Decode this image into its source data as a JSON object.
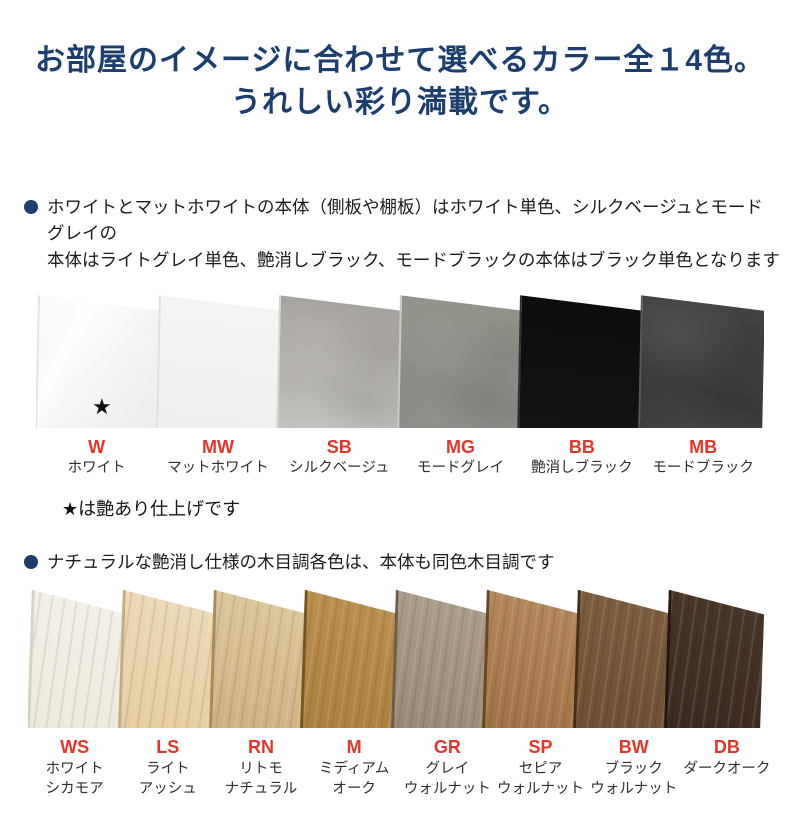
{
  "title": {
    "lines": [
      "お部屋のイメージに合わせて選べるカラー全１4色。",
      "うれしい彩り満載です。"
    ],
    "color": "#1b3e6f"
  },
  "accent": {
    "code_color": "#e53528",
    "bullet_color": "#1b3e6f"
  },
  "groups": [
    {
      "note_lines": [
        "ホワイトとマットホワイトの本体（側板や棚板）はホワイト単色、シルクベージュとモードグレイの",
        "本体はライトグレイ単色、艶消しブラック、モードブラックの本体はブラック単色となります"
      ],
      "footnote": "★は艶あり仕上げです",
      "swatches": [
        {
          "code": "W",
          "name_lines": [
            "ホワイト"
          ],
          "color_top": "#fbfcfc",
          "color_bottom": "#f4f5f5",
          "edge": "#e3e3e3",
          "texture": "gloss",
          "star": "★"
        },
        {
          "code": "MW",
          "name_lines": [
            "マットホワイト"
          ],
          "color_top": "#f4f4f3",
          "color_bottom": "#ededec",
          "edge": "#e0e0de",
          "texture": "flat"
        },
        {
          "code": "SB",
          "name_lines": [
            "シルクベージュ"
          ],
          "color_top": "#a5a29e",
          "color_bottom": "#cbc9c5",
          "edge": "#d8d6d2",
          "texture": "stone"
        },
        {
          "code": "MG",
          "name_lines": [
            "モードグレイ"
          ],
          "color_top": "#909189",
          "color_bottom": "#878882",
          "edge": "#c9c9c5",
          "texture": "stone"
        },
        {
          "code": "BB",
          "name_lines": [
            "艶消しブラック"
          ],
          "color_top": "#0d0d0d",
          "color_bottom": "#161616",
          "edge": "#303030",
          "texture": "flat"
        },
        {
          "code": "MB",
          "name_lines": [
            "モードブラック"
          ],
          "color_top": "#424342",
          "color_bottom": "#353635",
          "edge": "#5a5a58",
          "texture": "stone"
        }
      ]
    },
    {
      "note_lines": [
        "ナチュラルな艶消し仕様の木目調各色は、本体も同色木目調です"
      ],
      "swatches": [
        {
          "code": "WS",
          "name_lines": [
            "ホワイト",
            "シカモア"
          ],
          "color_top": "#f2efe7",
          "color_bottom": "#eae5d8",
          "edge": "#d9d2c0",
          "texture": "wood"
        },
        {
          "code": "LS",
          "name_lines": [
            "ライト",
            "アッシュ"
          ],
          "color_top": "#eed9b6",
          "color_bottom": "#e2c697",
          "edge": "#c8ac7e",
          "texture": "wood"
        },
        {
          "code": "RN",
          "name_lines": [
            "リトモ",
            "ナチュラル"
          ],
          "color_top": "#dcc49c",
          "color_bottom": "#c8a977",
          "edge": "#a78b5c",
          "texture": "wood"
        },
        {
          "code": "M",
          "name_lines": [
            "ミディアム",
            "オーク"
          ],
          "color_top": "#b98f4f",
          "color_bottom": "#a57b3c",
          "edge": "#75561f",
          "texture": "wood"
        },
        {
          "code": "GR",
          "name_lines": [
            "グレイ",
            "ウォルナット"
          ],
          "color_top": "#ab9c89",
          "color_bottom": "#92826e",
          "edge": "#6b5e4f",
          "texture": "wood"
        },
        {
          "code": "SP",
          "name_lines": [
            "セピア",
            "ウォルナット"
          ],
          "color_top": "#b3885a",
          "color_bottom": "#96693c",
          "edge": "#684724",
          "texture": "wood"
        },
        {
          "code": "BW",
          "name_lines": [
            "ブラック",
            "ウォルナット"
          ],
          "color_top": "#7d5e3d",
          "color_bottom": "#66492c",
          "edge": "#432e18",
          "texture": "wood"
        },
        {
          "code": "DB",
          "name_lines": [
            "ダークオーク"
          ],
          "color_top": "#493628",
          "color_bottom": "#34241b",
          "edge": "#22160f",
          "texture": "wood"
        }
      ]
    }
  ]
}
